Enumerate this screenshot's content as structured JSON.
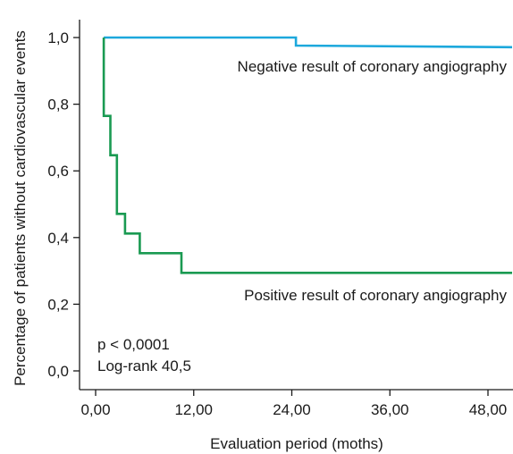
{
  "chart_data": {
    "type": "line",
    "step": true,
    "title": "",
    "xlabel": "Evaluation period (moths)",
    "ylabel": "Percentage of patients without cardiovascular events",
    "xlim": [
      -4,
      52
    ],
    "ylim": [
      -0.05,
      1.05
    ],
    "xticks": [
      0,
      12,
      24,
      36,
      48
    ],
    "xtick_labels": [
      "0,00",
      "12,00",
      "24,00",
      "36,00",
      "48,00"
    ],
    "yticks": [
      0,
      0.2,
      0.4,
      0.6,
      0.8,
      1.0
    ],
    "ytick_labels": [
      "0,0",
      "0,2",
      "0,4",
      "0,6",
      "0,8",
      "1,0"
    ],
    "grid": false,
    "series": [
      {
        "name": "Negative result of coronary angiography",
        "color": "#1ca8dc",
        "x": [
          1,
          24.5,
          24.5,
          52
        ],
        "y": [
          1.0,
          1.0,
          0.976,
          0.971
        ]
      },
      {
        "name": "Positive result of coronary angiography",
        "color": "#1a9a52",
        "x": [
          1,
          1,
          1.8,
          1.8,
          2.6,
          2.6,
          3.6,
          3.6,
          5.4,
          5.4,
          6.3,
          6.3,
          10.5,
          10.5,
          52
        ],
        "y": [
          1.0,
          0.765,
          0.765,
          0.647,
          0.647,
          0.471,
          0.471,
          0.412,
          0.412,
          0.353,
          0.353,
          0.353,
          0.353,
          0.294,
          0.294
        ]
      }
    ],
    "annotations": {
      "negative_label": "Negative result of coronary angiography",
      "positive_label": "Positive result of coronary angiography",
      "pvalue": "p < 0,0001",
      "logrank": "Log-rank 40,5"
    }
  }
}
